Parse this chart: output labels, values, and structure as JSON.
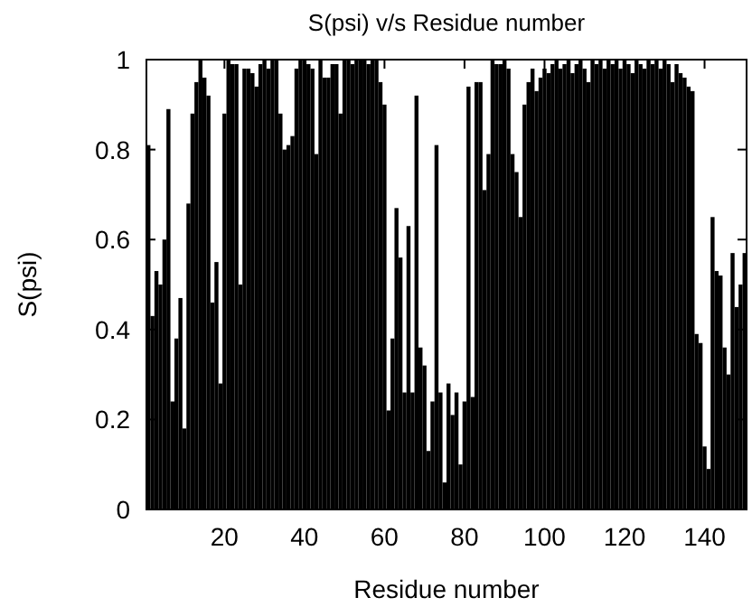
{
  "chart_data": {
    "type": "bar",
    "title": "S(psi) v/s Residue number",
    "xlabel": "Residue number",
    "ylabel": "S(psi)",
    "x": [
      1,
      2,
      3,
      4,
      5,
      6,
      7,
      8,
      9,
      10,
      11,
      12,
      13,
      14,
      15,
      16,
      17,
      18,
      19,
      20,
      21,
      22,
      23,
      24,
      25,
      26,
      27,
      28,
      29,
      30,
      31,
      32,
      33,
      34,
      35,
      36,
      37,
      38,
      39,
      40,
      41,
      42,
      43,
      44,
      45,
      46,
      47,
      48,
      49,
      50,
      51,
      52,
      53,
      54,
      55,
      56,
      57,
      58,
      59,
      60,
      61,
      62,
      63,
      64,
      65,
      66,
      67,
      68,
      69,
      70,
      71,
      72,
      73,
      74,
      75,
      76,
      77,
      78,
      79,
      80,
      81,
      82,
      83,
      84,
      85,
      86,
      87,
      88,
      89,
      90,
      91,
      92,
      93,
      94,
      95,
      96,
      97,
      98,
      99,
      100,
      101,
      102,
      103,
      104,
      105,
      106,
      107,
      108,
      109,
      110,
      111,
      112,
      113,
      114,
      115,
      116,
      117,
      118,
      119,
      120,
      121,
      122,
      123,
      124,
      125,
      126,
      127,
      128,
      129,
      130,
      131,
      132,
      133,
      134,
      135,
      136,
      137,
      138,
      139,
      140,
      141,
      142,
      143,
      144,
      145,
      146,
      147,
      148,
      149,
      150
    ],
    "values": [
      0.81,
      0.43,
      0.53,
      0.5,
      0.6,
      0.89,
      0.24,
      0.38,
      0.47,
      0.18,
      0.68,
      0.88,
      0.95,
      1.0,
      0.96,
      0.92,
      0.46,
      0.55,
      0.28,
      0.88,
      1.0,
      0.99,
      0.99,
      0.5,
      0.98,
      0.98,
      0.97,
      0.94,
      0.99,
      1.0,
      0.98,
      1.0,
      1.0,
      0.88,
      0.8,
      0.81,
      0.83,
      0.98,
      1.0,
      1.0,
      0.99,
      0.98,
      0.79,
      1.0,
      0.96,
      0.96,
      0.99,
      0.99,
      0.88,
      1.0,
      1.0,
      0.99,
      1.0,
      1.0,
      1.0,
      0.99,
      1.0,
      1.0,
      0.95,
      0.9,
      0.22,
      0.38,
      0.67,
      0.56,
      0.26,
      0.63,
      0.26,
      0.92,
      0.36,
      0.32,
      0.13,
      0.24,
      0.81,
      0.26,
      0.06,
      0.28,
      0.21,
      0.26,
      0.1,
      0.24,
      0.94,
      0.25,
      0.95,
      0.95,
      0.71,
      0.79,
      1.0,
      0.99,
      0.99,
      1.0,
      0.98,
      0.79,
      0.75,
      0.65,
      0.9,
      0.95,
      0.98,
      0.93,
      0.96,
      0.98,
      0.97,
      0.99,
      1.0,
      0.98,
      0.99,
      1.0,
      0.97,
      0.99,
      1.0,
      0.98,
      0.95,
      1.0,
      0.99,
      1.0,
      0.98,
      1.0,
      0.99,
      1.0,
      0.98,
      1.0,
      0.99,
      0.97,
      1.0,
      0.99,
      0.98,
      1.0,
      0.99,
      1.0,
      0.98,
      1.0,
      0.99,
      0.95,
      0.99,
      0.97,
      0.96,
      0.94,
      0.93,
      0.39,
      0.37,
      0.14,
      0.09,
      0.65,
      0.53,
      0.52,
      0.36,
      0.3,
      0.57,
      0.45,
      0.5,
      0.57
    ],
    "color": "#000000",
    "xlim": [
      0.5,
      150.5
    ],
    "xticks": [
      20,
      40,
      60,
      80,
      100,
      120,
      140
    ],
    "ylim": [
      0,
      1
    ],
    "yticks": [
      0,
      0.2,
      0.4,
      0.6,
      0.8,
      1
    ]
  }
}
